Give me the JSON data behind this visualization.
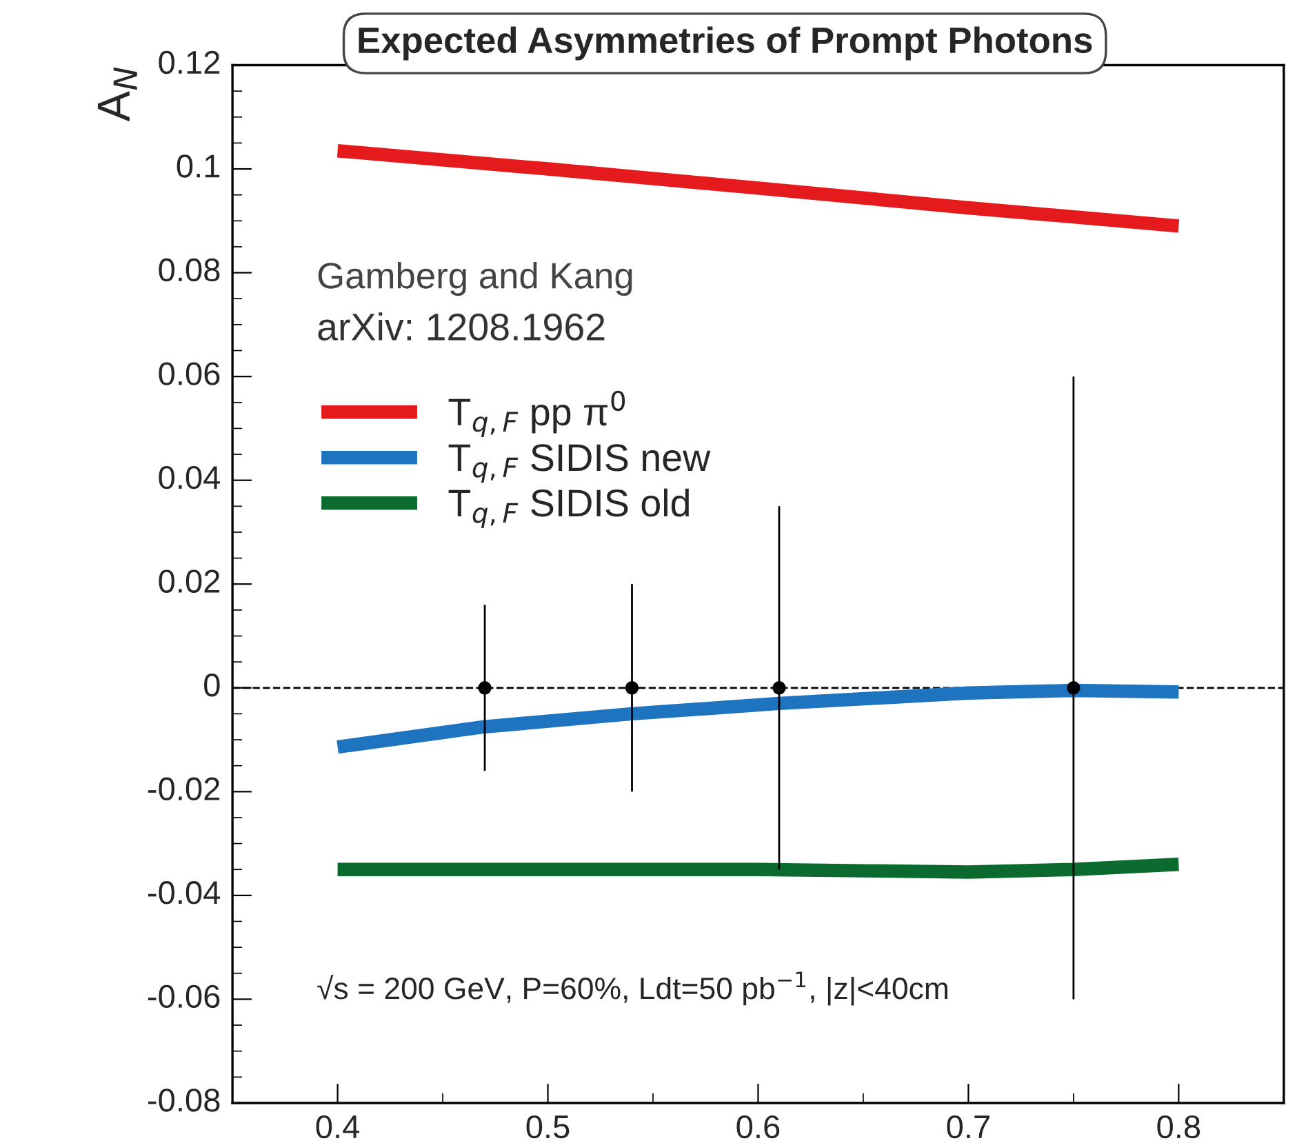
{
  "chart_data": {
    "type": "line",
    "title": "Expected Asymmetries of Prompt Photons",
    "ylabel": "A$_{N}$",
    "xlim": [
      0.35,
      0.85
    ],
    "ylim": [
      -0.08,
      0.12
    ],
    "xticks": [
      0.4,
      0.5,
      0.6,
      0.7,
      0.8
    ],
    "yticks": [
      -0.08,
      -0.06,
      -0.04,
      -0.02,
      0,
      0.02,
      0.04,
      0.06,
      0.08,
      0.1,
      0.12
    ],
    "grid": false,
    "legend": "left",
    "series": [
      {
        "name": "T$_{q,F}$ pp π$^{0}$",
        "color": "#e41a1c",
        "x": [
          0.4,
          0.5,
          0.6,
          0.7,
          0.8
        ],
        "values": [
          0.1035,
          0.1,
          0.0963,
          0.0925,
          0.089
        ]
      },
      {
        "name": "T$_{q,F}$ SIDIS new",
        "color": "#1f74c0",
        "x": [
          0.4,
          0.47,
          0.54,
          0.61,
          0.7,
          0.75,
          0.8
        ],
        "values": [
          -0.0114,
          -0.0075,
          -0.005,
          -0.003,
          -0.001,
          -0.0005,
          -0.0008
        ]
      },
      {
        "name": "T$_{q,F}$ SIDIS old",
        "color": "#0b6b2e",
        "x": [
          0.4,
          0.5,
          0.6,
          0.7,
          0.75,
          0.8
        ],
        "values": [
          -0.035,
          -0.035,
          -0.035,
          -0.0355,
          -0.035,
          -0.034
        ]
      },
      {
        "type": "scatter",
        "color": "#000000",
        "marker": "circle",
        "x": [
          0.47,
          0.54,
          0.61,
          0.75
        ],
        "values": [
          0,
          0,
          0,
          0
        ],
        "errors": [
          0.016,
          0.02,
          0.035,
          0.06
        ]
      }
    ],
    "ref_lines": [
      {
        "axis": "y",
        "value": 0,
        "color": "#000000",
        "line_style": "dashed"
      }
    ],
    "annotations": [
      "Gamberg and Kang",
      "arXiv: 1208.1962",
      "√s = 200 GeV, P=60%, Ldt=50 pb$^{−1}$, |z|<40cm"
    ]
  }
}
